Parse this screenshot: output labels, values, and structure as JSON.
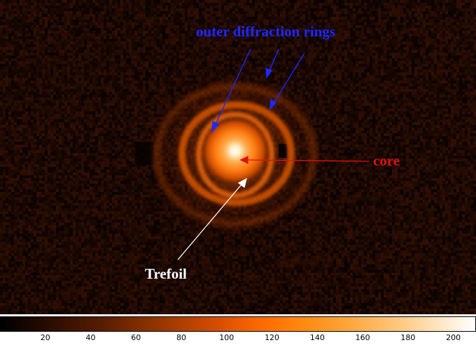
{
  "annotations": {
    "rings_label": "outer diffraction rings",
    "core_label": "core",
    "trefoil_label": "Trefoil"
  },
  "colors": {
    "rings_label": "#1f28ff",
    "core_label": "#e01010",
    "trefoil_label": "#ffffff",
    "background": "#0d0502"
  },
  "colorbar": {
    "min": 0,
    "max": 210,
    "ticks": [
      "20",
      "40",
      "60",
      "80",
      "100",
      "120",
      "140",
      "160",
      "180",
      "200"
    ],
    "tick_values": [
      20,
      40,
      60,
      80,
      100,
      120,
      140,
      160,
      180,
      200
    ]
  }
}
